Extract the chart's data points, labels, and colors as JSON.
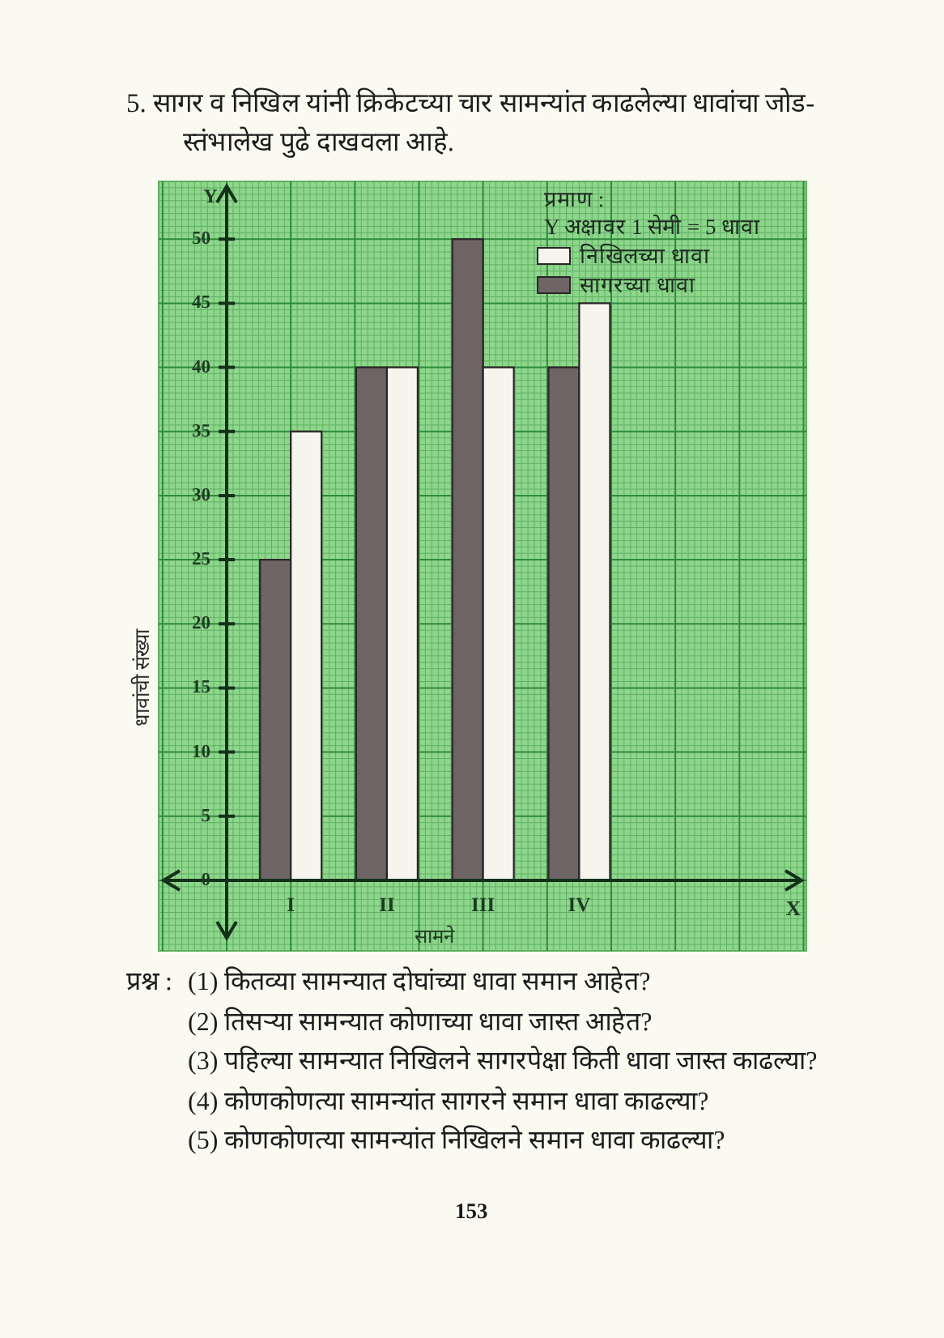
{
  "chart_data": {
    "type": "bar",
    "title": "5. सागर व निखिल यांनी क्रिकेटच्या चार सामन्यांत काढलेल्या धावांचा जोड-स्तंभालेख पुढे दाखवला आहे.",
    "xlabel": "सामने",
    "ylabel": "धावांची संख्या",
    "legend_title": "प्रमाण :",
    "categories": [
      "I",
      "II",
      "III",
      "IV"
    ],
    "series": [
      {
        "name": "सागरच्या धावा",
        "color": "#6e6466",
        "values": [
          25,
          40,
          50,
          40
        ]
      },
      {
        "name": "निखिलच्या धावा",
        "color": "#f5f5ee",
        "values": [
          35,
          40,
          40,
          45
        ]
      }
    ],
    "ylim": [
      -5.5,
      54.5
    ],
    "yticks": [
      0,
      5,
      10,
      15,
      20,
      25,
      30,
      35,
      40,
      45,
      50
    ],
    "grid": true,
    "legend": "top right",
    "annotations": [
      "Y",
      "X",
      "Y अक्षावर 1 सेमी = 5 धावा",
      "प्रश्न :",
      "(1) कितव्या सामन्यात दोघांच्या धावा समान आहेत?",
      "(2) तिसऱ्या सामन्यात कोणाच्या धावा जास्त आहेत?",
      "(3) पहिल्या सामन्यात निखिलने सागरपेक्षा किती धावा जास्त काढल्या?",
      "(4) कोणकोणत्या सामन्यांत सागरने समान धावा काढल्या?",
      "(5) कोणकोणत्या सामन्यांत निखिलने समान धावा काढल्या?",
      "153"
    ]
  }
}
